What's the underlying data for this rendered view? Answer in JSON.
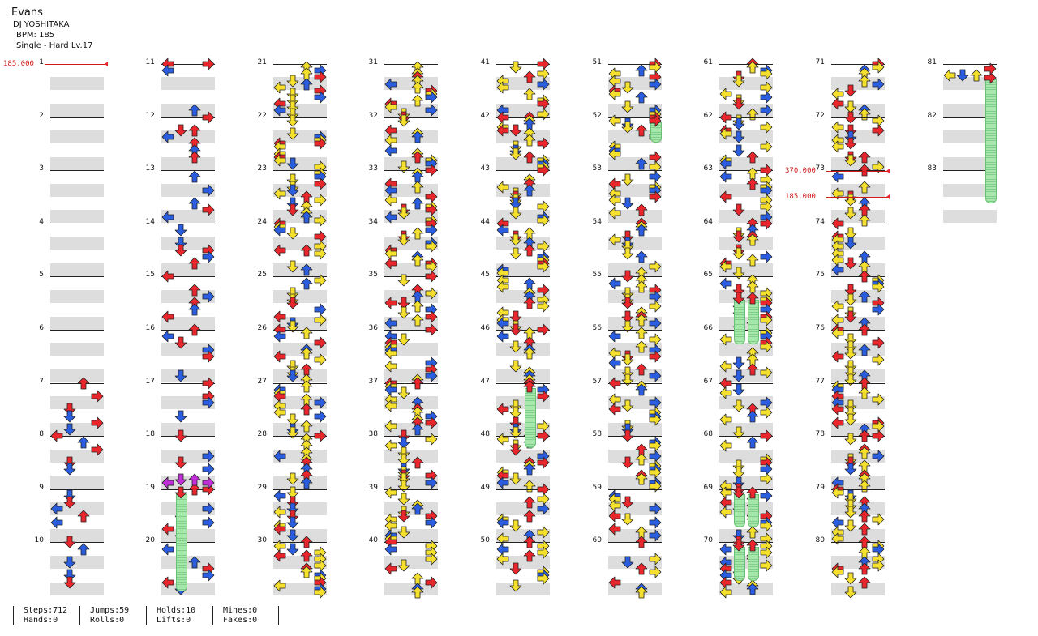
{
  "song": {
    "title": "Evans",
    "artist": "DJ YOSHITAKA",
    "bpm_label": "BPM: 185",
    "difficulty_label": "Single - Hard  Lv.17"
  },
  "bpm_changes": [
    {
      "label": "185.000",
      "measure": 1
    },
    {
      "label": "370.000",
      "measure": 73
    },
    {
      "label": "185.000",
      "measure": 73.5
    }
  ],
  "measures": [
    "1",
    "2",
    "3",
    "4",
    "5",
    "6",
    "7",
    "8",
    "9",
    "10",
    "11",
    "12",
    "13",
    "14",
    "15",
    "16",
    "17",
    "18",
    "19",
    "20",
    "21",
    "22",
    "23",
    "24",
    "25",
    "26",
    "27",
    "28",
    "29",
    "30",
    "31",
    "32",
    "33",
    "34",
    "35",
    "36",
    "37",
    "38",
    "39",
    "40",
    "41",
    "42",
    "43",
    "44",
    "45",
    "46",
    "47",
    "48",
    "49",
    "50",
    "51",
    "52",
    "53",
    "54",
    "55",
    "56",
    "57",
    "58",
    "59",
    "60",
    "61",
    "62",
    "63",
    "64",
    "65",
    "66",
    "67",
    "68",
    "69",
    "70",
    "71",
    "72",
    "73",
    "74",
    "75",
    "76",
    "77",
    "78",
    "79",
    "80",
    "81",
    "82",
    "83"
  ],
  "colors": {
    "quarter": "#e8262b",
    "eighth": "#2a5de0",
    "sixteenth": "#f5e02e",
    "special": "#c02fd8",
    "hold": "#8fdc97"
  },
  "stats": {
    "steps": "Steps:712",
    "hands": "Hands:0",
    "jumps": "Jumps:59",
    "rolls": "Rolls:0",
    "holds": "Holds:10",
    "lifts": "Lifts:0",
    "mines": "Mines:0",
    "fakes": "Fakes:0"
  }
}
